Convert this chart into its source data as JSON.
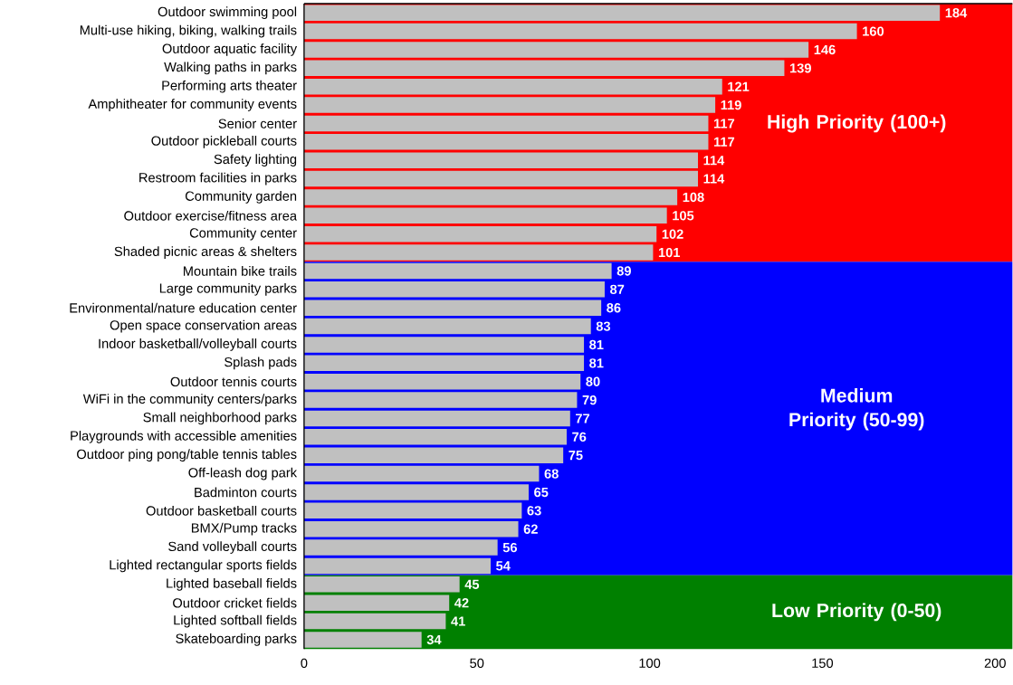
{
  "chart_data": {
    "type": "bar",
    "orientation": "horizontal",
    "categories": [
      "Outdoor swimming pool",
      "Multi-use hiking, biking, walking trails",
      "Outdoor aquatic facility",
      "Walking paths in parks",
      "Performing arts theater",
      "Amphitheater for community events",
      "Senior center",
      "Outdoor pickleball courts",
      "Safety lighting",
      "Restroom facilities in parks",
      "Community garden",
      "Outdoor exercise/fitness area",
      "Community center",
      "Shaded picnic areas & shelters",
      "Mountain bike trails",
      "Large community parks",
      "Environmental/nature education center",
      "Open space conservation areas",
      "Indoor basketball/volleyball courts",
      "Splash pads",
      "Outdoor tennis courts",
      "WiFi in the community centers/parks",
      "Small neighborhood parks",
      "Playgrounds with accessible amenities",
      "Outdoor ping pong/table tennis tables",
      "Off-leash dog park",
      "Badminton courts",
      "Outdoor basketball courts",
      "BMX/Pump tracks",
      "Sand volleyball courts",
      "Lighted rectangular sports fields",
      "Lighted baseball fields",
      "Outdoor cricket fields",
      "Lighted softball fields",
      "Skateboarding parks"
    ],
    "values": [
      184,
      160,
      146,
      139,
      121,
      119,
      117,
      117,
      114,
      114,
      108,
      105,
      102,
      101,
      89,
      87,
      86,
      83,
      81,
      81,
      80,
      79,
      77,
      76,
      75,
      68,
      65,
      63,
      62,
      56,
      54,
      45,
      42,
      41,
      34
    ],
    "color": "#c0c0c0",
    "data_labels": true,
    "xlim": [
      0,
      205
    ],
    "xticks": [
      0,
      50,
      100,
      150,
      200
    ],
    "grid": false,
    "bands": [
      {
        "axis": "y",
        "from": "Outdoor swimming pool",
        "to": "Shaded picnic areas & shelters",
        "label": "High Priority (100+)",
        "color": "#ff0000"
      },
      {
        "axis": "y",
        "from": "Mountain bike trails",
        "to": "Lighted rectangular sports fields",
        "label": "Medium Priority (50-99)",
        "color": "#0000ff"
      },
      {
        "axis": "y",
        "from": "Lighted baseball fields",
        "to": "Skateboarding parks",
        "label": "Low Priority (0-50)",
        "color": "#008000"
      }
    ]
  }
}
